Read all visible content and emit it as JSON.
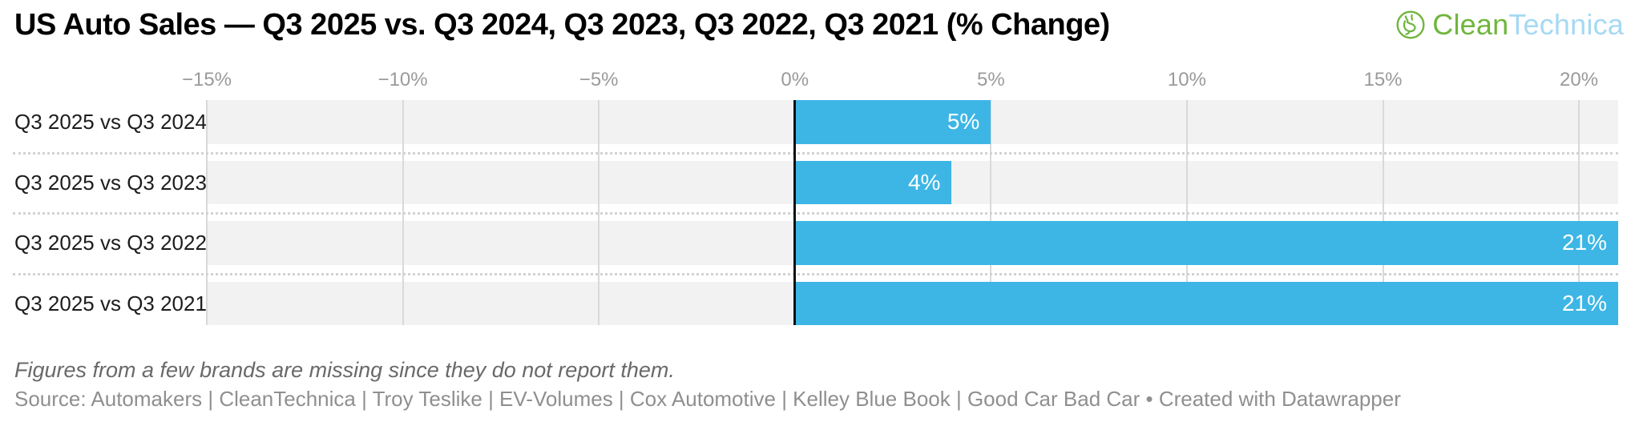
{
  "header": {
    "title": "US Auto Sales — Q3 2025 vs. Q3 2024, Q3 2023, Q3 2022, Q3 2021 (% Change)",
    "logo": {
      "part1": "Clean",
      "part2": "Technica",
      "icon": "cleantechnica-circle-plug-icon",
      "green": "#6fb63c",
      "light_blue": "#a5d9f3"
    }
  },
  "chart_data": {
    "type": "bar",
    "orientation": "horizontal",
    "title": "US Auto Sales — Q3 2025 vs. Q3 2024, Q3 2023, Q3 2022, Q3 2021 (% Change)",
    "categories": [
      "Q3 2025 vs Q3 2024",
      "Q3 2025 vs Q3 2023",
      "Q3 2025 vs Q3 2022",
      "Q3 2025 vs Q3 2021"
    ],
    "values": [
      5,
      4,
      21,
      21
    ],
    "value_labels": [
      "5%",
      "4%",
      "21%",
      "21%"
    ],
    "unit": "%",
    "xlim": [
      -15,
      21
    ],
    "ticks": [
      {
        "value": -15,
        "label": "−15%"
      },
      {
        "value": -10,
        "label": "−10%"
      },
      {
        "value": -5,
        "label": "−5%"
      },
      {
        "value": 0,
        "label": "0%"
      },
      {
        "value": 5,
        "label": "5%"
      },
      {
        "value": 10,
        "label": "10%"
      },
      {
        "value": 15,
        "label": "15%"
      },
      {
        "value": 20,
        "label": "20%"
      }
    ],
    "grid": true,
    "legend": "none",
    "bar_color": "#3db6e5",
    "band_color": "#f2f2f2",
    "gridline_color": "#d9d9d9",
    "zero_line_color": "#101010",
    "value_label_color": "#ffffff"
  },
  "footer": {
    "note": "Figures from a few brands are missing since they do not report them.",
    "source": "Source: Automakers | CleanTechnica | Troy Teslike | EV-Volumes | Cox Automotive | Kelley Blue Book | Good Car Bad Car • Created with Datawrapper"
  }
}
